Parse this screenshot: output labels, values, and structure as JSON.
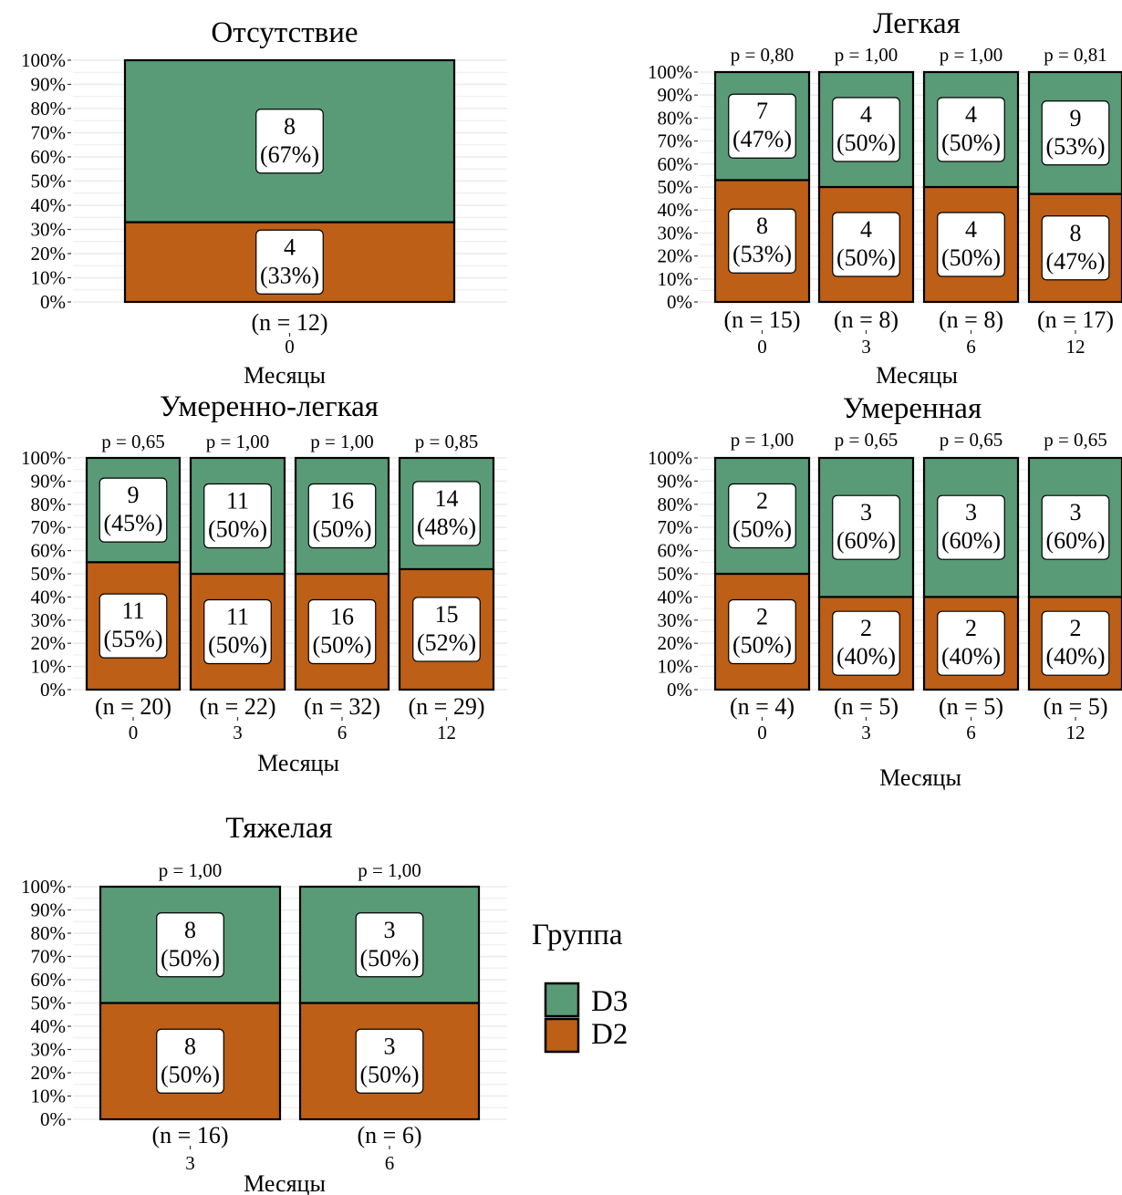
{
  "colors": {
    "D3": "#5a9b77",
    "D2": "#bd5f17",
    "grid": "#ebebeb",
    "label_bg": "#ffffff"
  },
  "legend": {
    "title": "Группа",
    "entries": [
      "D3",
      "D2"
    ]
  },
  "chart_data": [
    {
      "type": "bar",
      "stacked": "percent",
      "title": "Отсутствие",
      "xlabel": "Месяцы",
      "ylabel": "",
      "ylim": [
        0,
        100
      ],
      "yticks": [
        "0%",
        "10%",
        "20%",
        "30%",
        "40%",
        "50%",
        "60%",
        "70%",
        "80%",
        "90%",
        "100%"
      ],
      "categories": [
        "0"
      ],
      "n_labels": [
        "(n = 12)"
      ],
      "p_values": [],
      "series": [
        {
          "name": "D2",
          "counts": [
            4
          ],
          "percent": [
            33
          ],
          "labels": [
            "4\n(33%)"
          ]
        },
        {
          "name": "D3",
          "counts": [
            8
          ],
          "percent": [
            67
          ],
          "labels": [
            "8\n(67%)"
          ]
        }
      ]
    },
    {
      "type": "bar",
      "stacked": "percent",
      "title": "Легкая",
      "xlabel": "Месяцы",
      "ylabel": "",
      "ylim": [
        0,
        100
      ],
      "yticks": [
        "0%",
        "10%",
        "20%",
        "30%",
        "40%",
        "50%",
        "60%",
        "70%",
        "80%",
        "90%",
        "100%"
      ],
      "categories": [
        "0",
        "3",
        "6",
        "12"
      ],
      "n_labels": [
        "(n = 15)",
        "(n = 8)",
        "(n = 8)",
        "(n = 17)"
      ],
      "p_values": [
        "p = 0,80",
        "p = 1,00",
        "p = 1,00",
        "p = 0,81"
      ],
      "series": [
        {
          "name": "D2",
          "counts": [
            8,
            4,
            4,
            8
          ],
          "percent": [
            53,
            50,
            50,
            47
          ],
          "labels": [
            "8\n(53%)",
            "4\n(50%)",
            "4\n(50%)",
            "8\n(47%)"
          ]
        },
        {
          "name": "D3",
          "counts": [
            7,
            4,
            4,
            9
          ],
          "percent": [
            47,
            50,
            50,
            53
          ],
          "labels": [
            "7\n(47%)",
            "4\n(50%)",
            "4\n(50%)",
            "9\n(53%)"
          ]
        }
      ]
    },
    {
      "type": "bar",
      "stacked": "percent",
      "title": "Умеренно-легкая",
      "xlabel": "Месяцы",
      "ylabel": "",
      "ylim": [
        0,
        100
      ],
      "yticks": [
        "0%",
        "10%",
        "20%",
        "30%",
        "40%",
        "50%",
        "60%",
        "70%",
        "80%",
        "90%",
        "100%"
      ],
      "categories": [
        "0",
        "3",
        "6",
        "12"
      ],
      "n_labels": [
        "(n = 20)",
        "(n = 22)",
        "(n = 32)",
        "(n = 29)"
      ],
      "p_values": [
        "p = 0,65",
        "p = 1,00",
        "p = 1,00",
        "p = 0,85"
      ],
      "series": [
        {
          "name": "D2",
          "counts": [
            11,
            11,
            16,
            15
          ],
          "percent": [
            55,
            50,
            50,
            52
          ],
          "labels": [
            "11\n(55%)",
            "11\n(50%)",
            "16\n(50%)",
            "15\n(52%)"
          ]
        },
        {
          "name": "D3",
          "counts": [
            9,
            11,
            16,
            14
          ],
          "percent": [
            45,
            50,
            50,
            48
          ],
          "labels": [
            "9\n(45%)",
            "11\n(50%)",
            "16\n(50%)",
            "14\n(48%)"
          ]
        }
      ]
    },
    {
      "type": "bar",
      "stacked": "percent",
      "title": "Умеренная",
      "xlabel": "Месяцы",
      "ylabel": "",
      "ylim": [
        0,
        100
      ],
      "yticks": [
        "0%",
        "10%",
        "20%",
        "30%",
        "40%",
        "50%",
        "60%",
        "70%",
        "80%",
        "90%",
        "100%"
      ],
      "categories": [
        "0",
        "3",
        "6",
        "12"
      ],
      "n_labels": [
        "(n = 4)",
        "(n = 5)",
        "(n = 5)",
        "(n = 5)"
      ],
      "p_values": [
        "p = 1,00",
        "p = 0,65",
        "p = 0,65",
        "p = 0,65"
      ],
      "series": [
        {
          "name": "D2",
          "counts": [
            2,
            2,
            2,
            2
          ],
          "percent": [
            50,
            40,
            40,
            40
          ],
          "labels": [
            "2\n(50%)",
            "2\n(40%)",
            "2\n(40%)",
            "2\n(40%)"
          ]
        },
        {
          "name": "D3",
          "counts": [
            2,
            3,
            3,
            3
          ],
          "percent": [
            50,
            60,
            60,
            60
          ],
          "labels": [
            "2\n(50%)",
            "3\n(60%)",
            "3\n(60%)",
            "3\n(60%)"
          ]
        }
      ]
    },
    {
      "type": "bar",
      "stacked": "percent",
      "title": "Тяжелая",
      "xlabel": "Месяцы",
      "ylabel": "",
      "ylim": [
        0,
        100
      ],
      "yticks": [
        "0%",
        "10%",
        "20%",
        "30%",
        "40%",
        "50%",
        "60%",
        "70%",
        "80%",
        "90%",
        "100%"
      ],
      "categories": [
        "3",
        "6"
      ],
      "n_labels": [
        "(n = 16)",
        "(n = 6)"
      ],
      "p_values": [
        "p = 1,00",
        "p = 1,00"
      ],
      "series": [
        {
          "name": "D2",
          "counts": [
            8,
            3
          ],
          "percent": [
            50,
            50
          ],
          "labels": [
            "8\n(50%)",
            "3\n(50%)"
          ]
        },
        {
          "name": "D3",
          "counts": [
            8,
            3
          ],
          "percent": [
            50,
            50
          ],
          "labels": [
            "8\n(50%)",
            "3\n(50%)"
          ]
        }
      ]
    }
  ]
}
